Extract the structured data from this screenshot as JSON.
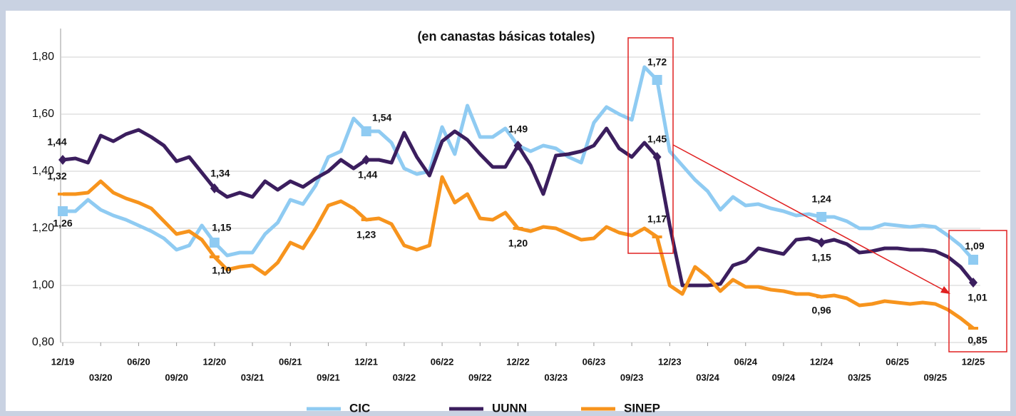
{
  "chart_data": {
    "type": "line",
    "subtitle": "(en canastas básicas totales)",
    "categories": [
      "12/19",
      null,
      null,
      "03/20",
      null,
      null,
      "06/20",
      null,
      null,
      "09/20",
      null,
      null,
      "12/20",
      null,
      null,
      "03/21",
      null,
      null,
      "06/21",
      null,
      null,
      "09/21",
      null,
      null,
      "12/21",
      null,
      null,
      "03/22",
      null,
      null,
      "06/22",
      null,
      null,
      "09/22",
      null,
      null,
      "12/22",
      null,
      null,
      "03/23",
      null,
      null,
      "06/23",
      null,
      null,
      "09/23",
      null,
      null,
      "12/23",
      null,
      null,
      "03/24",
      null,
      null,
      "06/24",
      null,
      null,
      "09/24",
      null,
      null,
      "12/24",
      null,
      null,
      "03/25",
      null,
      null,
      "06/25",
      null,
      null,
      "09/25",
      null,
      null,
      "12/25"
    ],
    "series": [
      {
        "name": "CIC",
        "color": "#8fcbf2",
        "values": [
          1.26,
          1.26,
          1.3,
          1.265,
          1.245,
          1.23,
          1.21,
          1.19,
          1.165,
          1.125,
          1.14,
          1.21,
          1.15,
          1.105,
          1.115,
          1.115,
          1.18,
          1.22,
          1.3,
          1.285,
          1.35,
          1.45,
          1.47,
          1.585,
          1.54,
          1.54,
          1.5,
          1.41,
          1.39,
          1.4,
          1.555,
          1.46,
          1.63,
          1.52,
          1.52,
          1.55,
          1.49,
          1.47,
          1.49,
          1.48,
          1.45,
          1.43,
          1.57,
          1.625,
          1.6,
          1.58,
          1.765,
          1.72,
          1.47,
          1.42,
          1.37,
          1.33,
          1.265,
          1.31,
          1.28,
          1.285,
          1.27,
          1.26,
          1.245,
          1.25,
          1.24,
          1.24,
          1.225,
          1.2,
          1.2,
          1.215,
          1.21,
          1.205,
          1.21,
          1.205,
          1.175,
          1.14,
          1.09
        ],
        "value_labels": [
          "1,26",
          null,
          null,
          null,
          null,
          null,
          null,
          null,
          null,
          null,
          null,
          null,
          "1,15",
          null,
          null,
          null,
          null,
          null,
          null,
          null,
          null,
          null,
          null,
          null,
          "1,54",
          null,
          null,
          null,
          null,
          null,
          null,
          null,
          null,
          null,
          null,
          null,
          null,
          null,
          null,
          null,
          null,
          null,
          null,
          null,
          null,
          null,
          null,
          "1,72",
          null,
          null,
          null,
          null,
          null,
          null,
          null,
          null,
          null,
          null,
          null,
          null,
          "1,24",
          null,
          null,
          null,
          null,
          null,
          null,
          null,
          null,
          null,
          null,
          null,
          "1,09"
        ]
      },
      {
        "name": "UUNN",
        "color": "#3b1e5e",
        "values": [
          1.44,
          1.445,
          1.43,
          1.525,
          1.505,
          1.53,
          1.545,
          1.52,
          1.49,
          1.435,
          1.45,
          1.395,
          1.34,
          1.31,
          1.325,
          1.31,
          1.365,
          1.335,
          1.365,
          1.345,
          1.375,
          1.4,
          1.44,
          1.41,
          1.44,
          1.44,
          1.43,
          1.535,
          1.45,
          1.385,
          1.505,
          1.54,
          1.51,
          1.46,
          1.415,
          1.415,
          1.49,
          1.42,
          1.32,
          1.455,
          1.46,
          1.47,
          1.49,
          1.55,
          1.48,
          1.45,
          1.5,
          1.45,
          1.21,
          1.0,
          1.0,
          1.0,
          1.005,
          1.07,
          1.085,
          1.13,
          1.12,
          1.11,
          1.16,
          1.165,
          1.15,
          1.16,
          1.145,
          1.115,
          1.12,
          1.13,
          1.13,
          1.125,
          1.125,
          1.12,
          1.1,
          1.065,
          1.01
        ],
        "value_labels": [
          "1,44",
          null,
          null,
          null,
          null,
          null,
          null,
          null,
          null,
          null,
          null,
          null,
          "1,34",
          null,
          null,
          null,
          null,
          null,
          null,
          null,
          null,
          null,
          null,
          null,
          "1,44",
          null,
          null,
          null,
          null,
          null,
          null,
          null,
          null,
          null,
          null,
          null,
          "1,49",
          null,
          null,
          null,
          null,
          null,
          null,
          null,
          null,
          null,
          null,
          "1,45",
          null,
          null,
          null,
          null,
          null,
          null,
          null,
          null,
          null,
          null,
          null,
          null,
          "1,15",
          null,
          null,
          null,
          null,
          null,
          null,
          null,
          null,
          null,
          null,
          null,
          "1,01"
        ]
      },
      {
        "name": "SINEP",
        "color": "#f7941d",
        "values": [
          1.32,
          1.32,
          1.325,
          1.365,
          1.325,
          1.305,
          1.29,
          1.27,
          1.225,
          1.18,
          1.19,
          1.16,
          1.1,
          1.055,
          1.065,
          1.07,
          1.04,
          1.08,
          1.15,
          1.13,
          1.2,
          1.28,
          1.295,
          1.27,
          1.23,
          1.235,
          1.215,
          1.14,
          1.125,
          1.14,
          1.38,
          1.29,
          1.32,
          1.235,
          1.23,
          1.255,
          1.2,
          1.19,
          1.205,
          1.2,
          1.18,
          1.16,
          1.165,
          1.205,
          1.185,
          1.175,
          1.2,
          1.17,
          1.0,
          0.97,
          1.065,
          1.03,
          0.98,
          1.02,
          0.995,
          0.995,
          0.985,
          0.98,
          0.97,
          0.97,
          0.96,
          0.965,
          0.955,
          0.93,
          0.935,
          0.945,
          0.94,
          0.935,
          0.94,
          0.935,
          0.915,
          0.885,
          0.85
        ],
        "value_labels": [
          "1,32",
          null,
          null,
          null,
          null,
          null,
          null,
          null,
          null,
          null,
          null,
          null,
          "1,10",
          null,
          null,
          null,
          null,
          null,
          null,
          null,
          null,
          null,
          null,
          null,
          "1,23",
          null,
          null,
          null,
          null,
          null,
          null,
          null,
          null,
          null,
          null,
          null,
          "1,20",
          null,
          null,
          null,
          null,
          null,
          null,
          null,
          null,
          null,
          null,
          "1,17",
          null,
          null,
          null,
          null,
          null,
          null,
          null,
          null,
          null,
          null,
          null,
          null,
          "0,96",
          null,
          null,
          null,
          null,
          null,
          null,
          null,
          null,
          null,
          null,
          null,
          "0,85"
        ]
      }
    ],
    "ylim": [
      0.8,
      1.8
    ],
    "yticks": [
      {
        "value": 0.8,
        "label": "0,80"
      },
      {
        "value": 1.0,
        "label": "1,00"
      },
      {
        "value": 1.2,
        "label": "1,20"
      },
      {
        "value": 1.4,
        "label": "1,40"
      },
      {
        "value": 1.6,
        "label": "1,60"
      },
      {
        "value": 1.8,
        "label": "1,80"
      }
    ],
    "grid": true,
    "legend": "bottom"
  }
}
